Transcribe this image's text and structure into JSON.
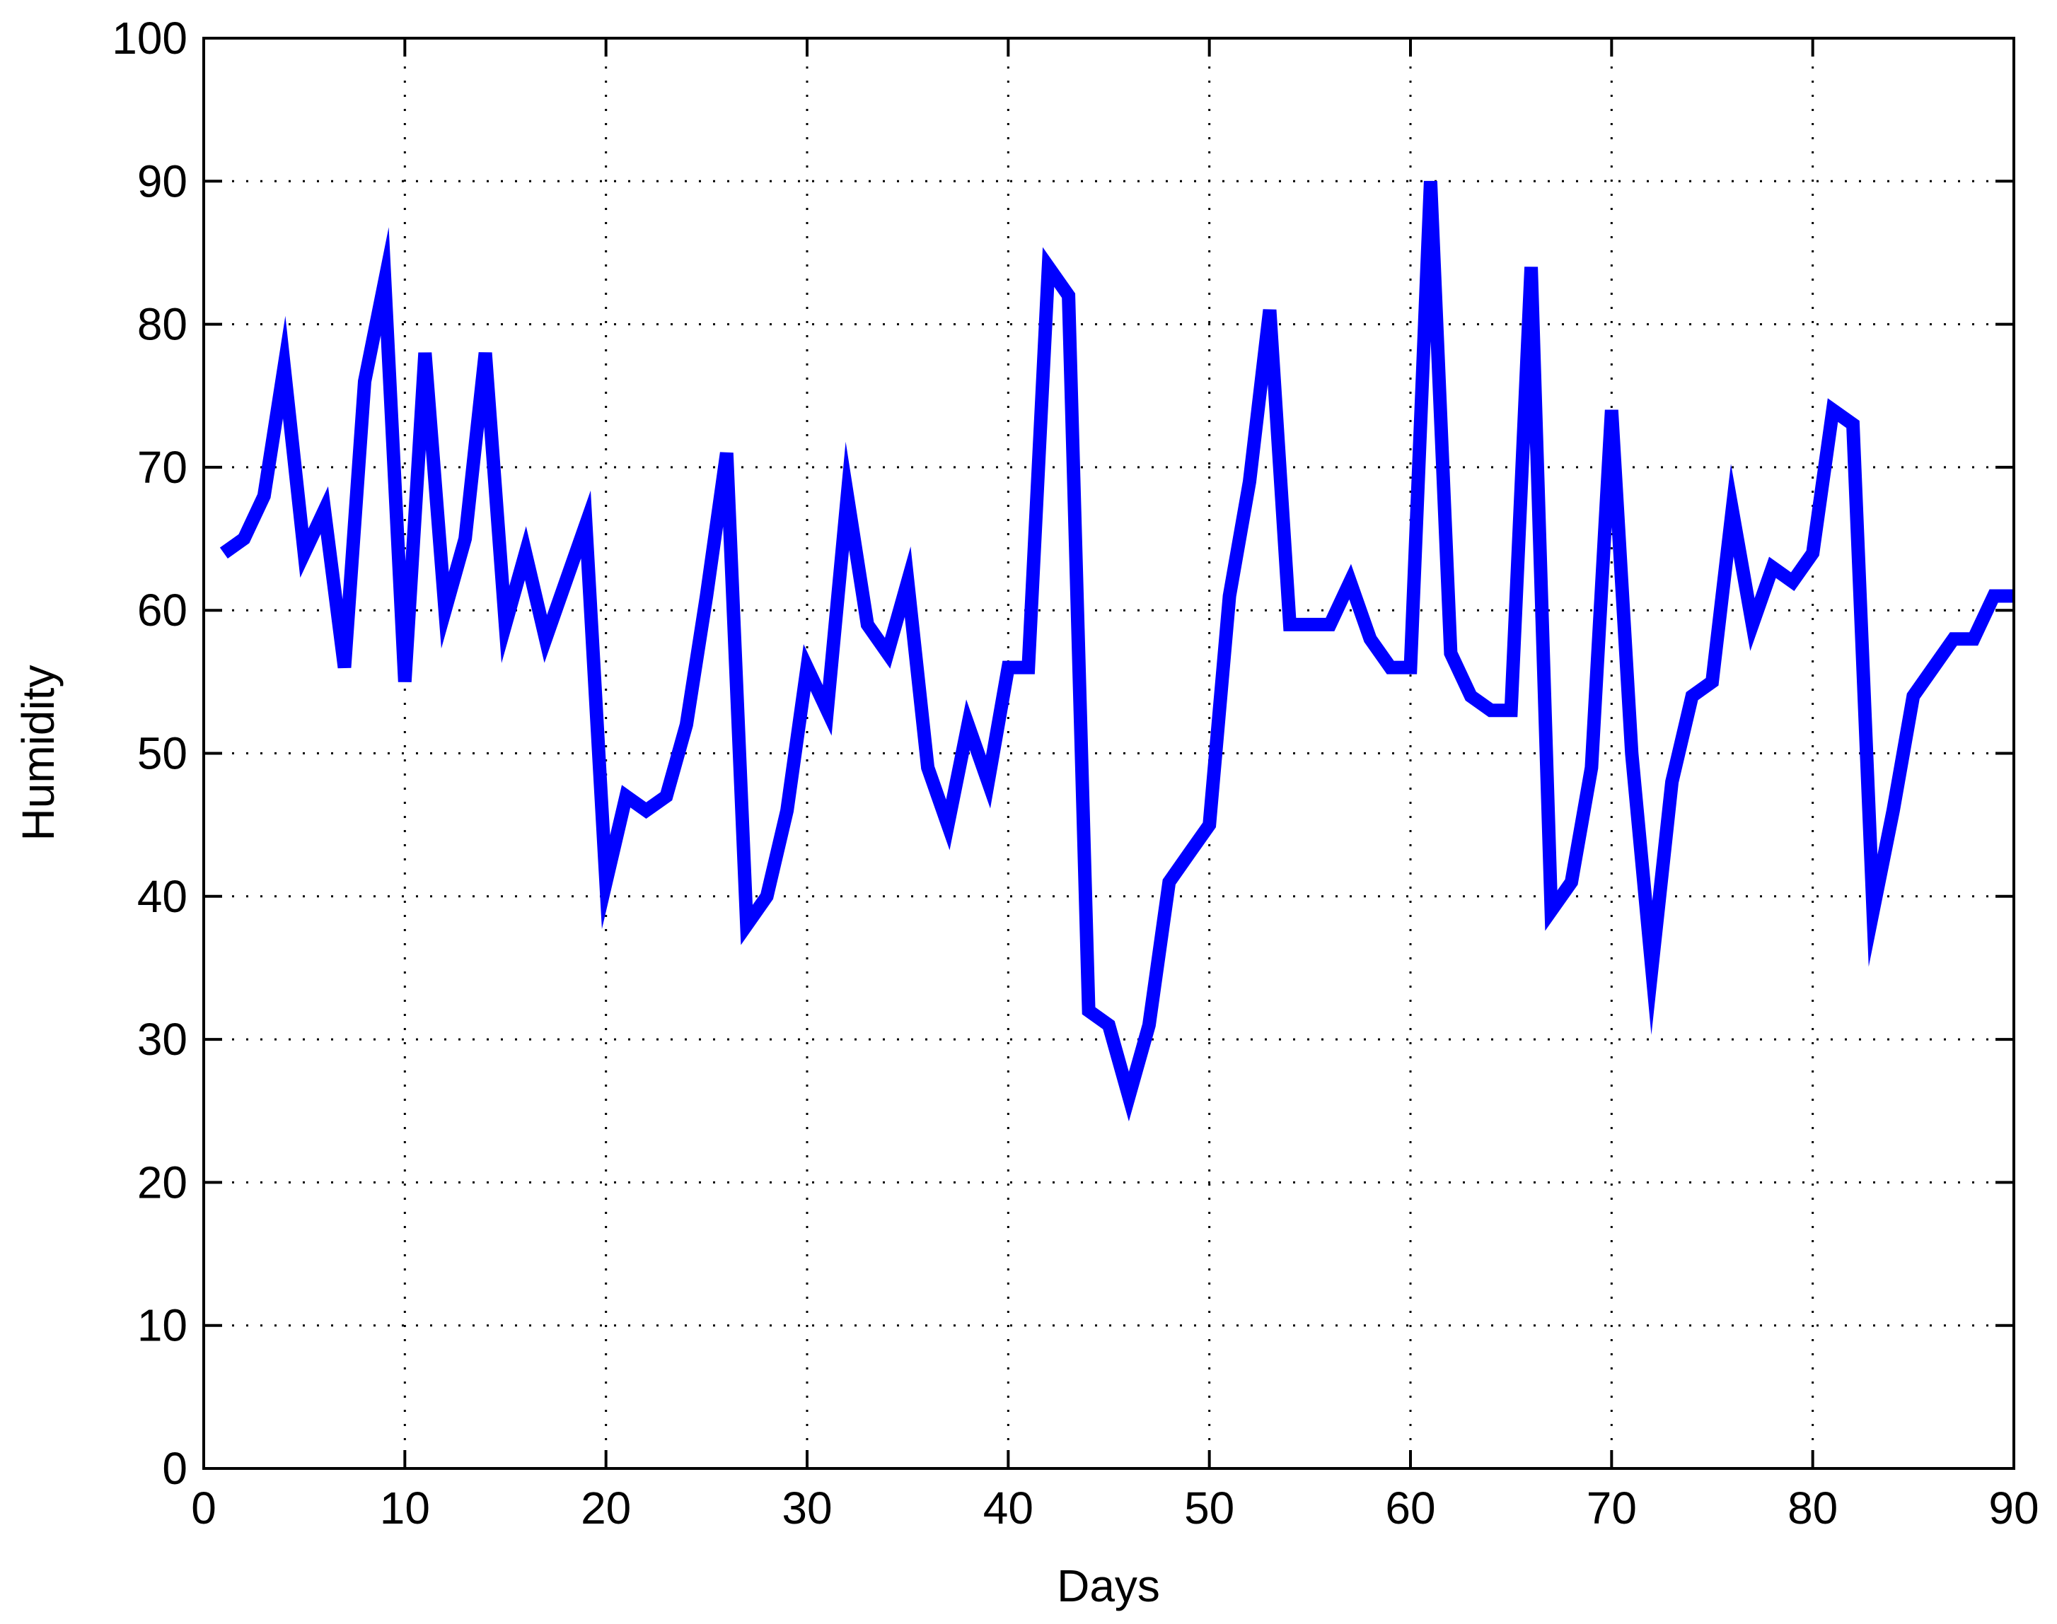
{
  "chart_data": {
    "type": "line",
    "title": "",
    "xlabel": "Days",
    "ylabel": "Humidity",
    "xlim": [
      0,
      90
    ],
    "ylim": [
      0,
      100
    ],
    "xticks": [
      0,
      10,
      20,
      30,
      40,
      50,
      60,
      70,
      80,
      90
    ],
    "yticks": [
      0,
      10,
      20,
      30,
      40,
      50,
      60,
      70,
      80,
      90,
      100
    ],
    "grid": true,
    "legend": "none",
    "series": [
      {
        "color": "#0000ff",
        "x": [
          1,
          2,
          3,
          4,
          5,
          6,
          7,
          8,
          9,
          10,
          11,
          12,
          13,
          14,
          15,
          16,
          17,
          18,
          19,
          20,
          21,
          22,
          23,
          24,
          25,
          26,
          27,
          28,
          29,
          30,
          31,
          32,
          33,
          34,
          35,
          36,
          37,
          38,
          39,
          40,
          41,
          42,
          43,
          44,
          45,
          46,
          47,
          48,
          49,
          50,
          51,
          52,
          53,
          54,
          55,
          56,
          57,
          58,
          59,
          60,
          61,
          62,
          63,
          64,
          65,
          66,
          67,
          68,
          69,
          70,
          71,
          72,
          73,
          74,
          75,
          76,
          77,
          78,
          79,
          80,
          81,
          82,
          83,
          84,
          85,
          86,
          87,
          88,
          89,
          90
        ],
        "y": [
          64,
          65,
          68,
          77,
          64,
          67,
          56,
          76,
          83,
          55,
          78,
          60,
          65,
          78,
          59,
          64,
          58,
          62,
          66,
          41,
          47,
          46,
          47,
          52,
          61,
          71,
          38,
          40,
          46,
          56,
          53,
          68,
          59,
          57,
          62,
          49,
          45,
          52,
          48,
          56,
          56,
          84,
          82,
          32,
          31,
          26,
          31,
          41,
          43,
          45,
          61,
          69,
          81,
          59,
          59,
          59,
          62,
          58,
          56,
          56,
          90,
          57,
          54,
          53,
          53,
          84,
          39,
          41,
          49,
          74,
          50,
          35,
          48,
          54,
          55,
          67,
          59,
          63,
          62,
          64,
          74,
          73,
          39,
          46,
          54,
          56,
          58,
          58,
          61,
          61
        ]
      }
    ]
  }
}
